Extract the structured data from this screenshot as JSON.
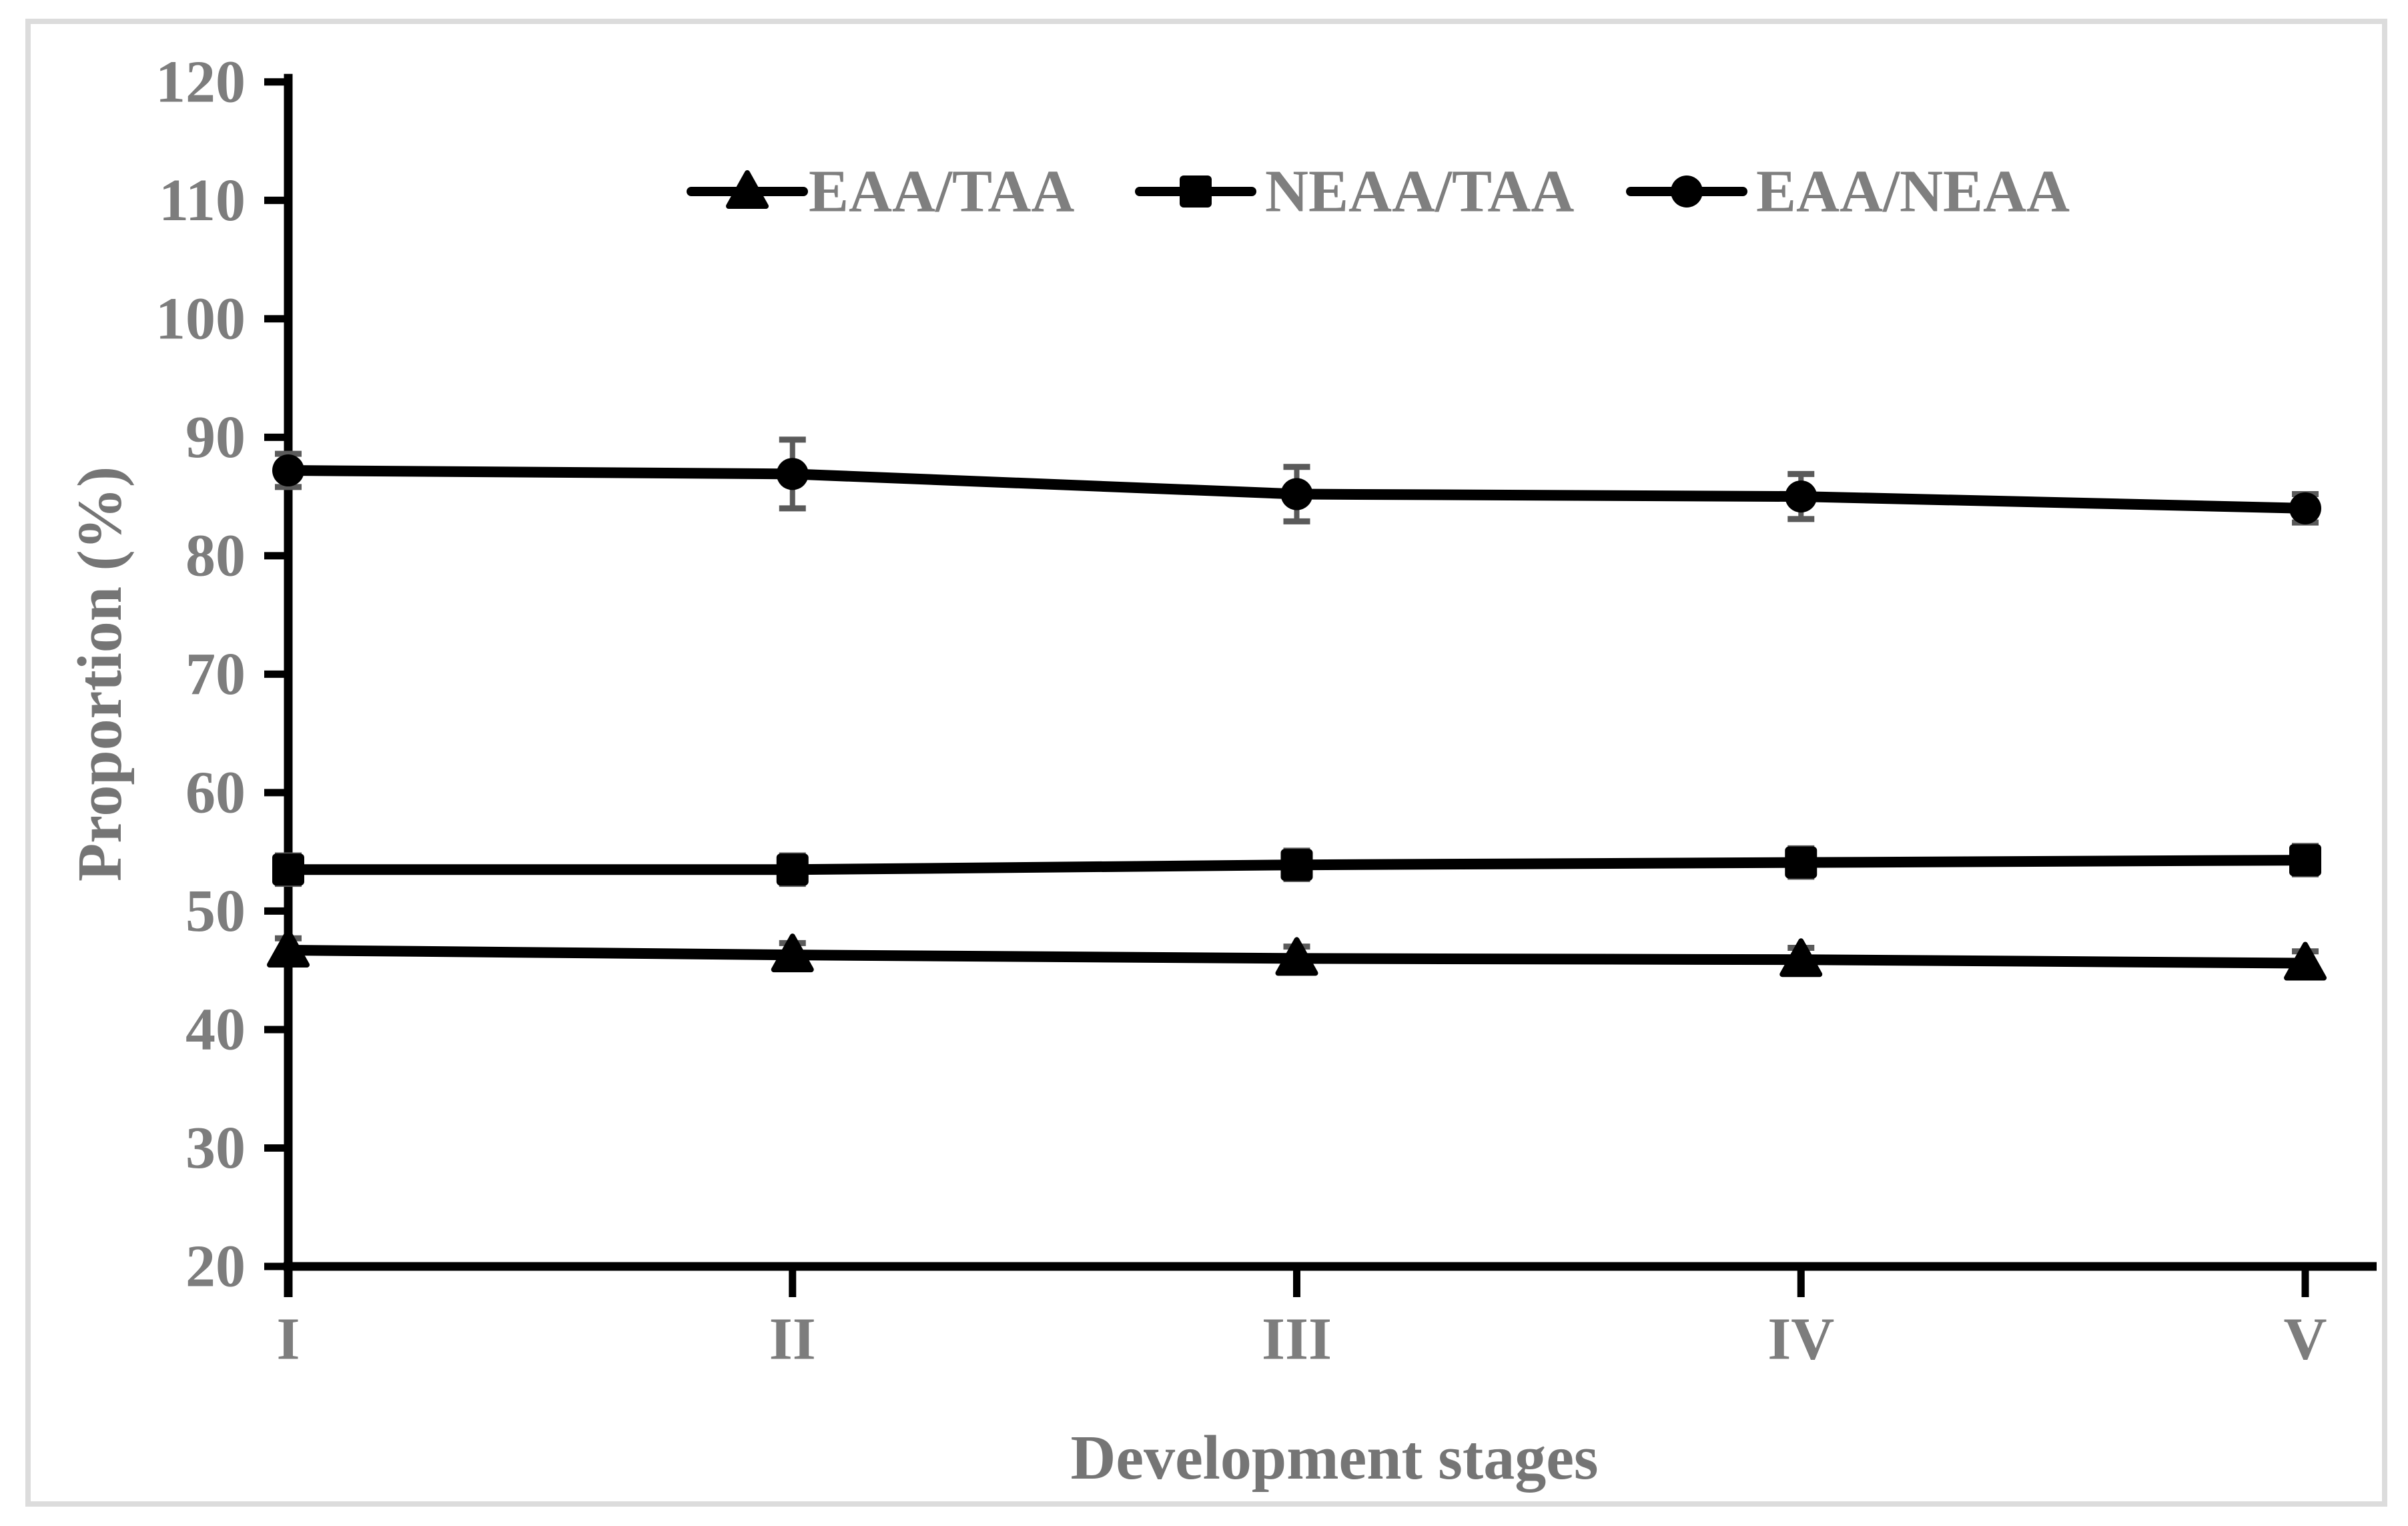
{
  "figure": {
    "background_color": "#ffffff",
    "border_color": "#dcdcdc"
  },
  "chart_data": {
    "type": "line",
    "title": "",
    "xlabel": "Development stages",
    "ylabel": "Proportion (%)",
    "categories": [
      "I",
      "II",
      "III",
      "IV",
      "V"
    ],
    "ylim": [
      20,
      120
    ],
    "ytick_step": 10,
    "ytick_labels": [
      "20",
      "30",
      "40",
      "50",
      "60",
      "70",
      "80",
      "90",
      "100",
      "110",
      "120"
    ],
    "grid": false,
    "legend_position": "top-center-inside",
    "series": [
      {
        "name": "EAA/TAA",
        "marker": "triangle",
        "values": [
          46.7,
          46.3,
          46.0,
          45.9,
          45.6
        ],
        "errors": [
          1.0,
          1.0,
          1.0,
          1.0,
          1.0
        ]
      },
      {
        "name": "NEAA/TAA",
        "marker": "square",
        "values": [
          53.5,
          53.5,
          53.9,
          54.1,
          54.3
        ],
        "errors": [
          1.2,
          1.2,
          1.2,
          1.2,
          1.2
        ]
      },
      {
        "name": "EAA/NEAA",
        "marker": "circle",
        "values": [
          87.2,
          86.9,
          85.2,
          85.0,
          84.0
        ],
        "errors": [
          1.4,
          2.9,
          2.3,
          1.9,
          1.2
        ]
      }
    ],
    "colors": {
      "series_line": "#000000",
      "marker": "#000000",
      "error_bar": "#5a5a5a",
      "axis": "#000000",
      "tick_label": "#7d7d7d",
      "axis_title": "#757575",
      "legend_text": "#7f7f7f"
    }
  }
}
